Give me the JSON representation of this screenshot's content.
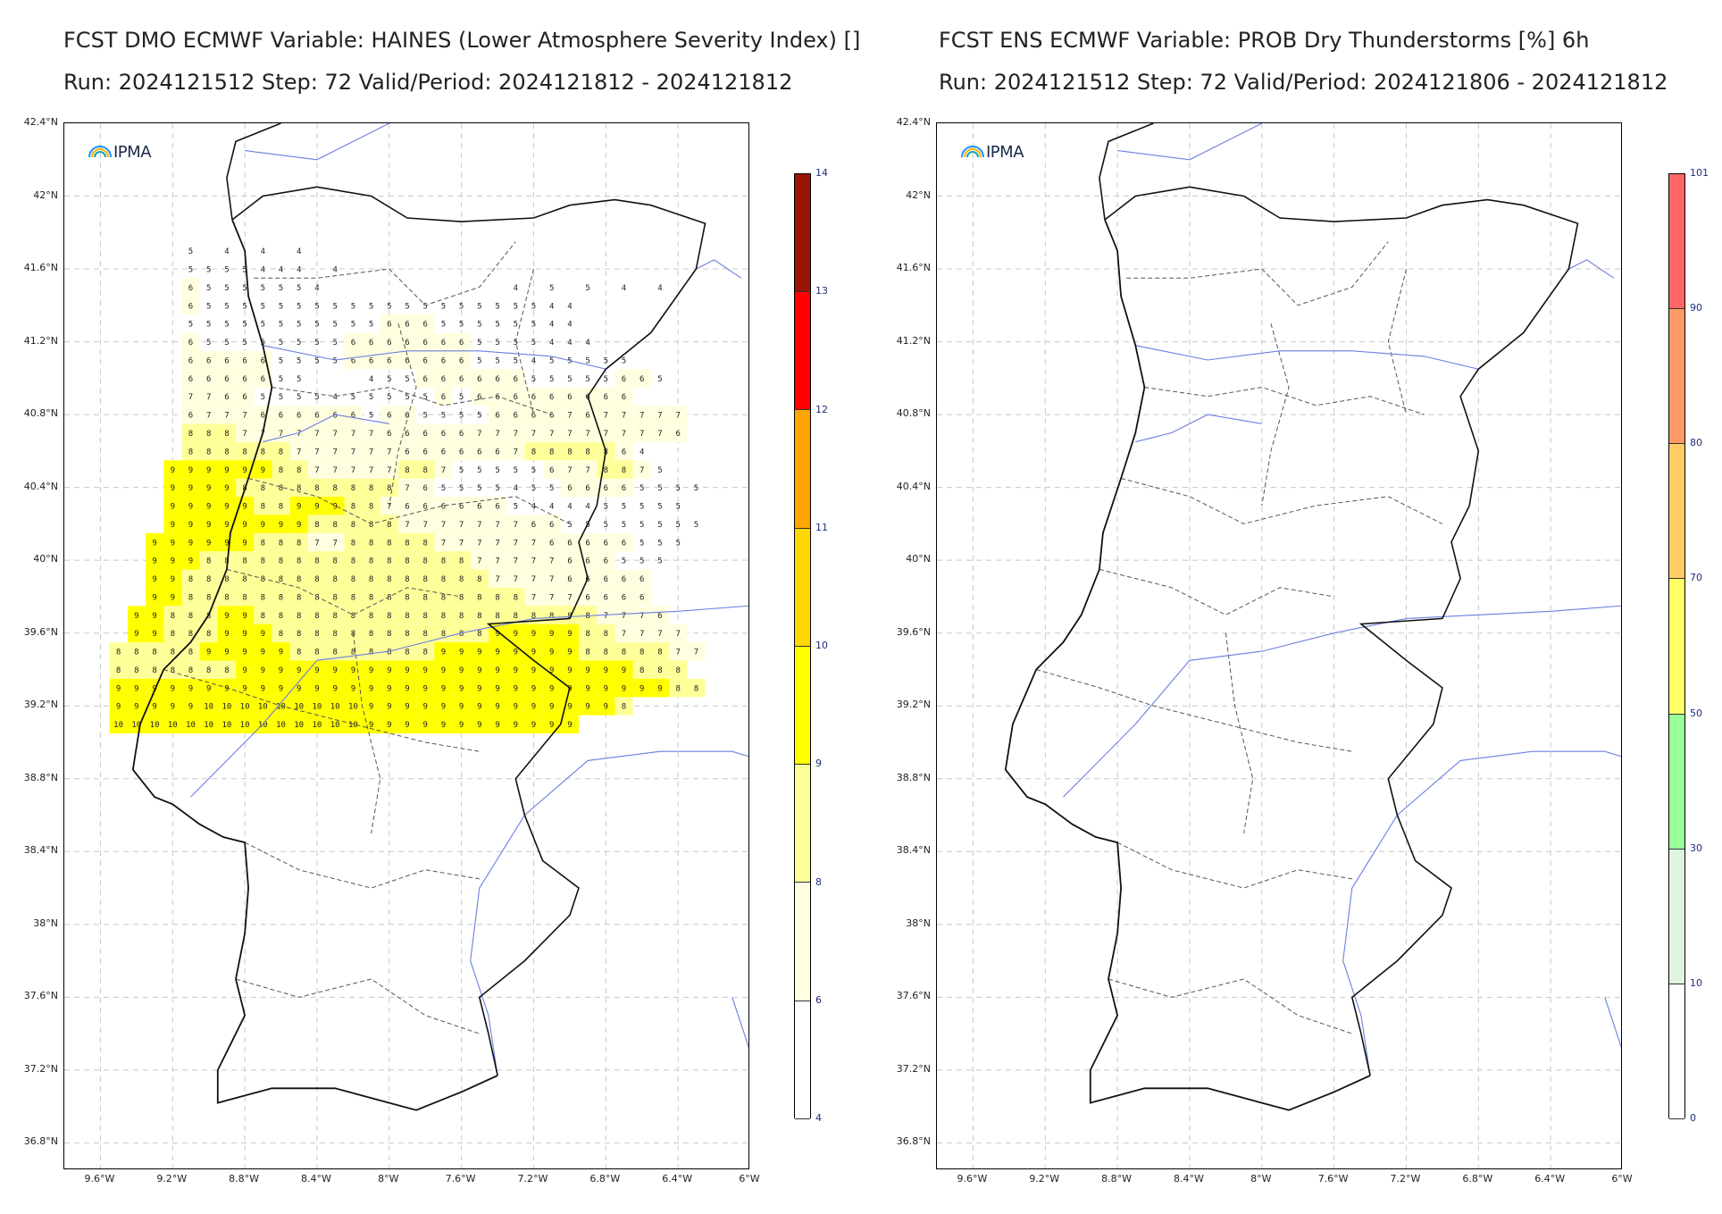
{
  "left_panel": {
    "title_line1": "FCST DMO ECMWF Variable: HAINES (Lower Atmosphere Severity Index) []",
    "title_line2": "Run: 2024121512 Step: 72 Valid/Period: 2024121812 - 2024121812",
    "logo_text": "IPMA",
    "colorbar": {
      "ticks": [
        "14",
        "13",
        "12",
        "11",
        "10",
        "9",
        "8",
        "6",
        "4"
      ],
      "colors": [
        "#9b1408",
        "#ff0000",
        "#ffa500",
        "#ffd700",
        "#ffff00",
        "#ffff99",
        "#ffffe0",
        "#ffffff"
      ]
    }
  },
  "right_panel": {
    "title_line1": "FCST ENS ECMWF Variable: PROB Dry Thunderstorms [%] 6h",
    "title_line2": "Run: 2024121512 Step: 72 Valid/Period: 2024121806 - 2024121812",
    "logo_text": "IPMA",
    "colorbar": {
      "ticks": [
        "101",
        "90",
        "80",
        "70",
        "50",
        "30",
        "10",
        "0"
      ],
      "colors": [
        "#ff6666",
        "#ff9966",
        "#ffcc66",
        "#ffff66",
        "#99ff99",
        "#e0f5e0",
        "#ffffff"
      ]
    }
  },
  "axes": {
    "lat_labels": [
      "42.4°N",
      "42°N",
      "41.6°N",
      "41.2°N",
      "40.8°N",
      "40.4°N",
      "40°N",
      "39.6°N",
      "39.2°N",
      "38.8°N",
      "38.4°N",
      "38°N",
      "37.6°N",
      "37.2°N",
      "36.8°N"
    ],
    "lon_labels": [
      "9.6°W",
      "9.2°W",
      "8.8°W",
      "8.4°W",
      "8°W",
      "7.6°W",
      "7.2°W",
      "6.8°W",
      "6.4°W",
      "6°W"
    ]
  },
  "haines_grid": [
    "...............................",
    "...............................",
    "...............................",
    "...............................",
    "...............................",
    "...............................",
    "...............................",
    "...............................",
    "...............................",
    "...............................",
    "...............................",
    "...............................",
    "...............................",
    "...............................",
    "...............................",
    "...............................",
    "...............................",
    "...............................",
    "...............................",
    "...............................",
    "...............................",
    "...............................",
    "...............................",
    "...............................",
    "...............................",
    "...............................",
    "...............................",
    "...............................",
    "...............................",
    "...............................",
    "...............................",
    "...............................",
    "...............................",
    "...............................",
    "...............................",
    "...............................",
    "...............................",
    "...............................",
    "...............................",
    "...............................",
    "...............................",
    "...............................",
    "...............................",
    "...............................",
    "...............................",
    "...............................",
    "...............................",
    "...............................",
    "...............................",
    "...............................",
    "...............................",
    "...............................",
    "...............................",
    "...............................",
    "...............................",
    "...............................",
    "...............................",
    "...............................",
    "..............................."
  ],
  "haines_rows": [
    {
      "y": 41.7,
      "cells": "....5.4.4.4....................."
    },
    {
      "y": 41.6,
      "cells": "....5555444 4......................"
    },
    {
      "y": 41.5,
      "cells": "....65555554..........4.5.5.4.4"
    },
    {
      "y": 41.4,
      "cells": "....6555555555555555555544"
    },
    {
      "y": 41.3,
      "cells": "....5555555555566655555544"
    },
    {
      "y": 41.2,
      "cells": "....65555555566666665555444"
    },
    {
      "y": 41.1,
      "cells": "....6666655556666666555455555"
    },
    {
      "y": 41.0,
      "cells": "....6666655...45566666655555665"
    },
    {
      "y": 40.9,
      "cells": "....7766555545555565666666666"
    },
    {
      "y": 40.8,
      "cells": "....6777666666566555566667677777"
    },
    {
      "y": 40.7,
      "cells": "....8887777777766666777777777776"
    },
    {
      "y": 40.6,
      "cells": "....88888877777766666678888864"
    },
    {
      "y": 40.5,
      "cells": "...9999998877777887555556778875"
    },
    {
      "y": 40.4,
      "cells": "...999988888888876555545566665555"
    },
    {
      "y": 40.3,
      "cells": "...99999889998876666665444455555"
    },
    {
      "y": 40.2,
      "cells": "...999999998888877777776655555555"
    },
    {
      "y": 40.1,
      "cells": "..999999888778888877777766666555"
    },
    {
      "y": 40.0,
      "cells": "..99988888888888888877777666555"
    },
    {
      "y": 39.9,
      "cells": "..9988888888888888888777766666"
    },
    {
      "y": 39.8,
      "cells": "..9988888888888888888887776666"
    },
    {
      "y": 39.7,
      "cells": ".998889988888888888888888887776"
    },
    {
      "y": 39.6,
      "cells": ".9988899988888888888899999887777"
    },
    {
      "y": 39.5,
      "cells": "888889999988888888999999998888877"
    },
    {
      "y": 39.4,
      "cells": "88888889999999999999999999999888"
    },
    {
      "y": 39.3,
      "cells": "999999999999999999999999999999988"
    },
    {
      "y": 39.2,
      "cells": "99999101010101010101010999999999999998"
    },
    {
      "y": 39.1,
      "cells": "1010101010101010101010101010999999999999"
    }
  ]
}
